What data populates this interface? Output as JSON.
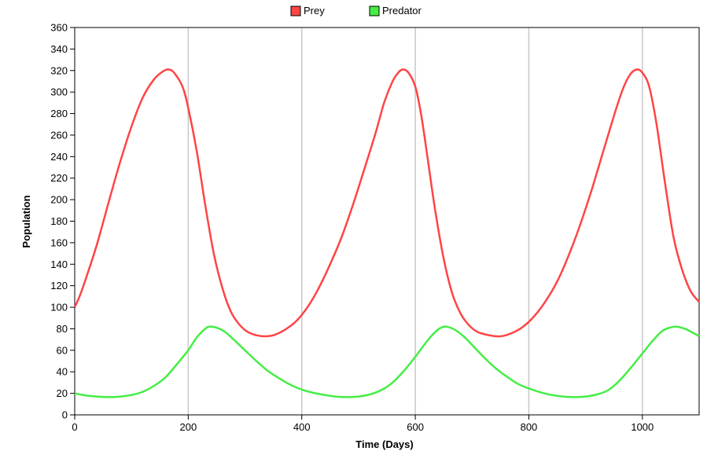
{
  "chart_data": {
    "type": "line",
    "title": "",
    "xlabel": "Time (Days)",
    "ylabel": "Population",
    "xlim": [
      0,
      1100
    ],
    "ylim": [
      0,
      360
    ],
    "x_ticks": [
      0,
      200,
      400,
      600,
      800,
      1000
    ],
    "y_ticks": [
      0,
      20,
      40,
      60,
      80,
      100,
      120,
      140,
      160,
      180,
      200,
      220,
      240,
      260,
      280,
      300,
      320,
      340,
      360
    ],
    "grid": true,
    "legend_position": "top-center",
    "series": [
      {
        "name": "Prey",
        "color": "#ff4444",
        "points": [
          [
            0,
            100
          ],
          [
            10,
            112
          ],
          [
            25,
            135
          ],
          [
            40,
            160
          ],
          [
            60,
            198
          ],
          [
            80,
            235
          ],
          [
            100,
            268
          ],
          [
            120,
            295
          ],
          [
            140,
            312
          ],
          [
            155,
            319
          ],
          [
            165,
            321
          ],
          [
            175,
            318
          ],
          [
            190,
            305
          ],
          [
            200,
            285
          ],
          [
            215,
            245
          ],
          [
            230,
            195
          ],
          [
            245,
            150
          ],
          [
            260,
            118
          ],
          [
            275,
            96
          ],
          [
            290,
            84
          ],
          [
            305,
            77
          ],
          [
            320,
            74
          ],
          [
            335,
            73
          ],
          [
            350,
            74
          ],
          [
            370,
            79
          ],
          [
            390,
            87
          ],
          [
            410,
            100
          ],
          [
            430,
            118
          ],
          [
            450,
            140
          ],
          [
            470,
            165
          ],
          [
            490,
            195
          ],
          [
            510,
            228
          ],
          [
            530,
            262
          ],
          [
            545,
            290
          ],
          [
            560,
            310
          ],
          [
            570,
            318
          ],
          [
            578,
            321
          ],
          [
            588,
            318
          ],
          [
            600,
            305
          ],
          [
            610,
            280
          ],
          [
            620,
            245
          ],
          [
            635,
            190
          ],
          [
            650,
            145
          ],
          [
            665,
            113
          ],
          [
            680,
            94
          ],
          [
            695,
            83
          ],
          [
            710,
            77
          ],
          [
            730,
            74
          ],
          [
            750,
            73
          ],
          [
            770,
            76
          ],
          [
            790,
            82
          ],
          [
            810,
            92
          ],
          [
            830,
            106
          ],
          [
            850,
            124
          ],
          [
            870,
            148
          ],
          [
            890,
            176
          ],
          [
            910,
            208
          ],
          [
            930,
            243
          ],
          [
            950,
            278
          ],
          [
            965,
            302
          ],
          [
            978,
            316
          ],
          [
            990,
            321
          ],
          [
            1000,
            318
          ],
          [
            1012,
            305
          ],
          [
            1025,
            270
          ],
          [
            1040,
            215
          ],
          [
            1055,
            165
          ],
          [
            1070,
            135
          ],
          [
            1085,
            115
          ],
          [
            1100,
            105
          ]
        ]
      },
      {
        "name": "Predator",
        "color": "#44ee44",
        "points": [
          [
            0,
            20
          ],
          [
            20,
            18
          ],
          [
            40,
            17
          ],
          [
            60,
            16.5
          ],
          [
            80,
            17
          ],
          [
            100,
            18.5
          ],
          [
            120,
            21.5
          ],
          [
            140,
            27
          ],
          [
            160,
            35
          ],
          [
            180,
            47
          ],
          [
            200,
            60
          ],
          [
            215,
            72
          ],
          [
            230,
            80
          ],
          [
            238,
            82
          ],
          [
            250,
            81
          ],
          [
            265,
            77
          ],
          [
            280,
            70
          ],
          [
            300,
            60
          ],
          [
            320,
            50
          ],
          [
            340,
            41
          ],
          [
            360,
            34
          ],
          [
            380,
            28
          ],
          [
            400,
            23.5
          ],
          [
            420,
            20.5
          ],
          [
            440,
            18.5
          ],
          [
            460,
            17
          ],
          [
            480,
            16.5
          ],
          [
            500,
            17
          ],
          [
            520,
            19
          ],
          [
            540,
            23
          ],
          [
            560,
            30
          ],
          [
            580,
            41
          ],
          [
            600,
            54
          ],
          [
            620,
            68
          ],
          [
            635,
            77
          ],
          [
            645,
            81
          ],
          [
            655,
            82
          ],
          [
            670,
            79
          ],
          [
            685,
            73
          ],
          [
            700,
            65
          ],
          [
            720,
            54
          ],
          [
            740,
            44
          ],
          [
            760,
            36
          ],
          [
            780,
            29
          ],
          [
            800,
            24.5
          ],
          [
            820,
            21
          ],
          [
            840,
            18.5
          ],
          [
            860,
            17
          ],
          [
            880,
            16.5
          ],
          [
            900,
            17
          ],
          [
            920,
            19
          ],
          [
            940,
            23
          ],
          [
            960,
            32
          ],
          [
            980,
            44
          ],
          [
            1000,
            57
          ],
          [
            1020,
            70
          ],
          [
            1035,
            78
          ],
          [
            1048,
            81
          ],
          [
            1060,
            82
          ],
          [
            1075,
            80
          ],
          [
            1090,
            76
          ],
          [
            1100,
            73
          ]
        ]
      }
    ]
  }
}
